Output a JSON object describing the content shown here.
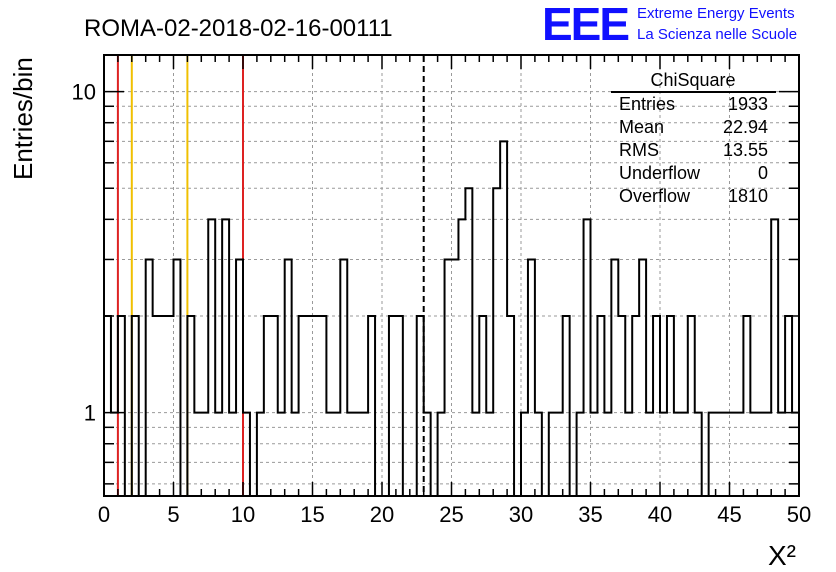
{
  "title": "ROMA-02-2018-02-16-00111",
  "logo": {
    "mark": "EEE",
    "line1": "Extreme Energy Events",
    "line2": "La Scienza nelle Scuole",
    "color": "#1010ff"
  },
  "stats_box": {
    "name": "ChiSquare",
    "rows": [
      {
        "label": "Entries",
        "value": "1933"
      },
      {
        "label": "Mean",
        "value": "22.94"
      },
      {
        "label": "RMS",
        "value": "13.55"
      },
      {
        "label": "Underflow",
        "value": "0"
      },
      {
        "label": "Overflow",
        "value": "1810"
      }
    ]
  },
  "chart_data": {
    "type": "histogram",
    "title": "ROMA-02-2018-02-16-00111",
    "xlabel": "X²",
    "ylabel": "Entries/bin",
    "xlim": [
      0,
      50
    ],
    "ylim": [
      0.55,
      13
    ],
    "yscale": "log",
    "grid": true,
    "bin_width": 0.5,
    "x_ticks": [
      "0",
      "5",
      "10",
      "15",
      "20",
      "25",
      "30",
      "35",
      "40",
      "45",
      "50"
    ],
    "y_ticks": [
      "1",
      "10"
    ],
    "bin_edges_start": 0,
    "counts": [
      2,
      1,
      2,
      0,
      2,
      0,
      3,
      2,
      2,
      2,
      3,
      0,
      2,
      1,
      1,
      4,
      1,
      4,
      1,
      3,
      1,
      0,
      1,
      2,
      2,
      1,
      3,
      1,
      2,
      2,
      2,
      2,
      1,
      1,
      3,
      1,
      1,
      1,
      2,
      0,
      0,
      2,
      2,
      0,
      0,
      2,
      1,
      0,
      1,
      3,
      3,
      4,
      5,
      1,
      2,
      1,
      5,
      7,
      2,
      0,
      1,
      3,
      1,
      0,
      1,
      1,
      2,
      0,
      1,
      4,
      1,
      2,
      1,
      3,
      2,
      1,
      2,
      3,
      1,
      2,
      1,
      2,
      1,
      1,
      2,
      1,
      0,
      1,
      1,
      1,
      1,
      1,
      2,
      1,
      1,
      1,
      4,
      1,
      2,
      1
    ],
    "vertical_lines": [
      {
        "x": 1,
        "color": "#dd2222",
        "style": "solid"
      },
      {
        "x": 2,
        "color": "#f0c000",
        "style": "solid"
      },
      {
        "x": 6,
        "color": "#f0c000",
        "style": "solid"
      },
      {
        "x": 10,
        "color": "#dd2222",
        "style": "solid"
      },
      {
        "x": 23,
        "color": "#000000",
        "style": "dashed"
      }
    ]
  }
}
